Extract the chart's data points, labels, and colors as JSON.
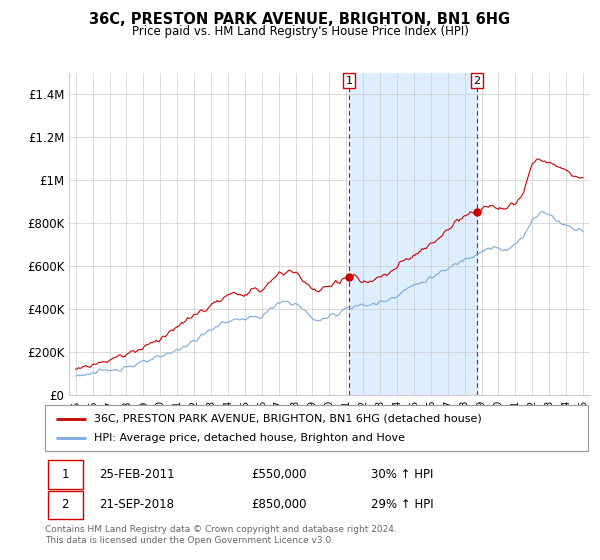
{
  "title": "36C, PRESTON PARK AVENUE, BRIGHTON, BN1 6HG",
  "subtitle": "Price paid vs. HM Land Registry's House Price Index (HPI)",
  "legend_label_red": "36C, PRESTON PARK AVENUE, BRIGHTON, BN1 6HG (detached house)",
  "legend_label_blue": "HPI: Average price, detached house, Brighton and Hove",
  "footnote": "Contains HM Land Registry data © Crown copyright and database right 2024.\nThis data is licensed under the Open Government Licence v3.0.",
  "transaction1_date": "25-FEB-2011",
  "transaction1_price": "£550,000",
  "transaction1_hpi": "30% ↑ HPI",
  "transaction2_date": "21-SEP-2018",
  "transaction2_price": "£850,000",
  "transaction2_hpi": "29% ↑ HPI",
  "red_color": "#cc0000",
  "blue_color": "#7aaadd",
  "shaded_color": "#ddeeff",
  "grid_color": "#cccccc",
  "vline_color": "#cc0000",
  "ylim": [
    0,
    1500000
  ],
  "yticks": [
    0,
    200000,
    400000,
    600000,
    800000,
    1000000,
    1200000,
    1400000
  ],
  "ytick_labels": [
    "£0",
    "£200K",
    "£400K",
    "£600K",
    "£800K",
    "£1M",
    "£1.2M",
    "£1.4M"
  ],
  "transaction1_x": 2011.15,
  "transaction1_y": 550000,
  "transaction2_x": 2018.72,
  "transaction2_y": 850000,
  "xlim_left": 1994.6,
  "xlim_right": 2025.4
}
